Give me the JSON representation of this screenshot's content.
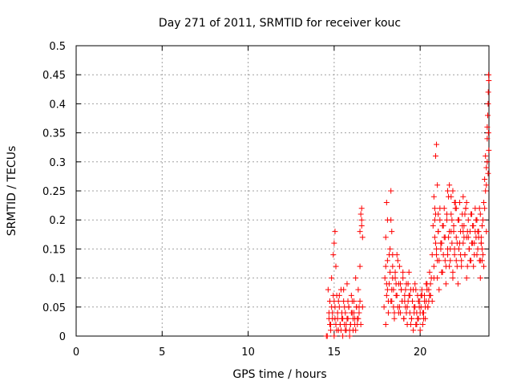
{
  "chart_data": {
    "type": "scatter",
    "title": "Day 271 of 2011, SRMTID for receiver kouc",
    "xlabel": "GPS time / hours",
    "ylabel": "SRMTID / TECUs",
    "xlim": [
      0,
      24
    ],
    "ylim": [
      0,
      0.5
    ],
    "xticks": [
      0,
      5,
      10,
      15,
      20
    ],
    "xtick_labels": [
      "0",
      "5",
      "10",
      "15",
      "20"
    ],
    "yticks": [
      0,
      0.05,
      0.1,
      0.15,
      0.2,
      0.25,
      0.3,
      0.35,
      0.4,
      0.45,
      0.5
    ],
    "ytick_labels": [
      "0",
      "0.05",
      "0.1",
      "0.15",
      "0.2",
      "0.25",
      "0.3",
      "0.35",
      "0.4",
      "0.45",
      "0.5"
    ],
    "grid": true,
    "marker": "plus",
    "color": "#ff0000",
    "series": [
      {
        "x": [
          14.55,
          14.6,
          14.65,
          14.7,
          14.75,
          14.8,
          14.85,
          14.9,
          14.95,
          15.0,
          15.05,
          15.1,
          15.15,
          15.2,
          15.25,
          15.3,
          15.35,
          15.4,
          15.45,
          15.5,
          15.55,
          15.6,
          15.65,
          15.7,
          15.75,
          15.8,
          15.85,
          15.9,
          15.95,
          16.0,
          16.05,
          16.1,
          16.15,
          16.2,
          16.25,
          16.3,
          16.35,
          16.4,
          16.45,
          16.5,
          16.55,
          16.6,
          16.65,
          14.7,
          14.8,
          14.9,
          15.0,
          15.1,
          15.2,
          15.3,
          15.4,
          15.5,
          15.6,
          15.7,
          15.8,
          15.9,
          16.0,
          16.1,
          16.2,
          16.3,
          16.4,
          16.5,
          14.75,
          14.85,
          14.95,
          15.05,
          15.15,
          15.25,
          15.35,
          15.45,
          15.55,
          15.65,
          15.75,
          15.85,
          15.95,
          16.05,
          16.15,
          16.25,
          16.35,
          16.45,
          15.0,
          15.05,
          15.1,
          16.5,
          16.55,
          16.6,
          16.6,
          16.65,
          17.9,
          17.95,
          18.0,
          18.05,
          18.1,
          18.15,
          18.2,
          18.25,
          18.3,
          18.35,
          18.4,
          18.45,
          18.5,
          18.55,
          18.6,
          18.65,
          18.7,
          18.75,
          18.8,
          18.85,
          18.9,
          18.95,
          19.0,
          19.05,
          19.1,
          19.15,
          19.2,
          19.25,
          19.3,
          19.35,
          19.4,
          19.45,
          19.5,
          19.55,
          19.6,
          19.65,
          19.7,
          19.75,
          19.8,
          19.85,
          19.9,
          19.95,
          20.0,
          20.05,
          20.1,
          20.15,
          20.2,
          20.25,
          20.3,
          20.35,
          20.4,
          20.45,
          20.5,
          20.55,
          20.6,
          20.65,
          20.7,
          18.0,
          18.1,
          18.2,
          18.3,
          18.4,
          18.5,
          18.6,
          18.7,
          18.8,
          18.9,
          19.0,
          19.1,
          19.2,
          19.3,
          19.4,
          19.5,
          19.6,
          19.7,
          19.8,
          19.9,
          20.0,
          20.1,
          20.2,
          20.3,
          20.4,
          20.5,
          20.6,
          18.05,
          18.15,
          18.25,
          18.35,
          18.45,
          18.55,
          18.65,
          18.75,
          18.85,
          18.95,
          19.05,
          19.15,
          19.25,
          19.35,
          19.45,
          19.55,
          19.65,
          19.75,
          19.85,
          19.95,
          20.05,
          20.15,
          20.25,
          20.35,
          20.45,
          20.55,
          18.0,
          18.05,
          18.1,
          18.3,
          18.35,
          18.4,
          20.8,
          20.85,
          20.9,
          20.95,
          21.0,
          21.05,
          20.7,
          20.75,
          20.8,
          20.85,
          20.9,
          20.95,
          21.0,
          21.05,
          21.1,
          21.15,
          21.2,
          21.25,
          21.3,
          21.35,
          21.4,
          21.45,
          21.5,
          21.55,
          21.6,
          21.65,
          21.7,
          21.75,
          21.8,
          21.85,
          21.9,
          21.95,
          22.0,
          22.05,
          22.1,
          22.15,
          22.2,
          22.25,
          22.3,
          22.35,
          22.4,
          22.45,
          22.5,
          22.55,
          22.6,
          22.65,
          22.7,
          22.75,
          22.8,
          22.85,
          22.9,
          22.95,
          23.0,
          23.05,
          23.1,
          23.15,
          23.2,
          23.25,
          23.3,
          23.35,
          23.4,
          23.45,
          23.5,
          23.55,
          23.6,
          23.65,
          20.8,
          20.9,
          21.0,
          21.1,
          21.2,
          21.3,
          21.4,
          21.5,
          21.6,
          21.7,
          21.8,
          21.9,
          22.0,
          22.1,
          22.2,
          22.3,
          22.4,
          22.5,
          22.6,
          22.7,
          22.8,
          22.9,
          23.0,
          23.1,
          23.2,
          23.3,
          23.4,
          23.5,
          23.6,
          20.85,
          20.95,
          21.05,
          21.15,
          21.25,
          21.35,
          21.45,
          21.55,
          21.65,
          21.75,
          21.85,
          21.95,
          22.05,
          22.15,
          22.25,
          22.35,
          22.45,
          22.55,
          22.65,
          22.75,
          22.85,
          22.95,
          23.05,
          23.15,
          23.25,
          23.35,
          23.45,
          23.55,
          21.6,
          21.7,
          21.8,
          21.9,
          22.0,
          22.1,
          22.5,
          22.6,
          22.7,
          23.5,
          23.55,
          23.6,
          23.65,
          23.7,
          23.75,
          23.8,
          23.85,
          23.9,
          23.95,
          23.97,
          23.99,
          23.7,
          23.75,
          23.8,
          23.85,
          23.9,
          23.93,
          23.96,
          23.98,
          23.99,
          23.95,
          23.9,
          23.85
        ],
        "y": [
          0.0,
          0.0,
          0.08,
          0.03,
          0.06,
          0.02,
          0.1,
          0.04,
          0.14,
          0.0,
          0.05,
          0.02,
          0.07,
          0.03,
          0.01,
          0.05,
          0.02,
          0.08,
          0.03,
          0.0,
          0.06,
          0.02,
          0.04,
          0.01,
          0.09,
          0.03,
          0.05,
          0.0,
          0.02,
          0.07,
          0.04,
          0.01,
          0.06,
          0.03,
          0.1,
          0.05,
          0.02,
          0.08,
          0.04,
          0.12,
          0.02,
          0.2,
          0.05,
          0.04,
          0.01,
          0.03,
          0.06,
          0.02,
          0.04,
          0.07,
          0.01,
          0.03,
          0.05,
          0.02,
          0.06,
          0.01,
          0.04,
          0.03,
          0.02,
          0.05,
          0.03,
          0.06,
          0.02,
          0.05,
          0.07,
          0.03,
          0.01,
          0.06,
          0.02,
          0.04,
          0.08,
          0.01,
          0.03,
          0.05,
          0.02,
          0.06,
          0.04,
          0.01,
          0.03,
          0.05,
          0.16,
          0.18,
          0.12,
          0.18,
          0.21,
          0.22,
          0.19,
          0.17,
          0.05,
          0.1,
          0.02,
          0.07,
          0.13,
          0.04,
          0.09,
          0.15,
          0.2,
          0.06,
          0.12,
          0.08,
          0.03,
          0.11,
          0.07,
          0.14,
          0.05,
          0.09,
          0.12,
          0.04,
          0.08,
          0.06,
          0.1,
          0.03,
          0.07,
          0.05,
          0.09,
          0.02,
          0.06,
          0.11,
          0.04,
          0.08,
          0.03,
          0.06,
          0.01,
          0.05,
          0.09,
          0.02,
          0.04,
          0.07,
          0.03,
          0.06,
          0.01,
          0.05,
          0.08,
          0.02,
          0.04,
          0.07,
          0.03,
          0.06,
          0.09,
          0.05,
          0.08,
          0.11,
          0.07,
          0.1,
          0.06,
          0.12,
          0.08,
          0.14,
          0.06,
          0.1,
          0.04,
          0.09,
          0.13,
          0.05,
          0.08,
          0.11,
          0.06,
          0.04,
          0.09,
          0.07,
          0.03,
          0.08,
          0.05,
          0.02,
          0.06,
          0.04,
          0.07,
          0.03,
          0.05,
          0.08,
          0.06,
          0.09,
          0.09,
          0.06,
          0.11,
          0.08,
          0.05,
          0.1,
          0.07,
          0.04,
          0.09,
          0.06,
          0.03,
          0.08,
          0.05,
          0.07,
          0.02,
          0.06,
          0.04,
          0.08,
          0.03,
          0.05,
          0.07,
          0.04,
          0.06,
          0.09,
          0.05,
          0.07,
          0.17,
          0.23,
          0.2,
          0.25,
          0.18,
          0.14,
          0.24,
          0.22,
          0.31,
          0.33,
          0.26,
          0.21,
          0.14,
          0.19,
          0.12,
          0.17,
          0.21,
          0.15,
          0.1,
          0.18,
          0.13,
          0.2,
          0.16,
          0.11,
          0.19,
          0.14,
          0.22,
          0.17,
          0.12,
          0.2,
          0.15,
          0.24,
          0.18,
          0.13,
          0.21,
          0.16,
          0.11,
          0.19,
          0.14,
          0.22,
          0.17,
          0.12,
          0.2,
          0.15,
          0.23,
          0.18,
          0.13,
          0.21,
          0.16,
          0.19,
          0.14,
          0.22,
          0.17,
          0.12,
          0.2,
          0.15,
          0.18,
          0.13,
          0.21,
          0.16,
          0.19,
          0.14,
          0.22,
          0.17,
          0.2,
          0.15,
          0.18,
          0.13,
          0.21,
          0.16,
          0.19,
          0.14,
          0.1,
          0.16,
          0.13,
          0.08,
          0.15,
          0.11,
          0.17,
          0.09,
          0.14,
          0.12,
          0.18,
          0.1,
          0.15,
          0.13,
          0.09,
          0.16,
          0.12,
          0.18,
          0.14,
          0.1,
          0.17,
          0.13,
          0.16,
          0.12,
          0.18,
          0.14,
          0.17,
          0.13,
          0.15,
          0.2,
          0.14,
          0.18,
          0.22,
          0.16,
          0.19,
          0.13,
          0.21,
          0.17,
          0.15,
          0.2,
          0.18,
          0.23,
          0.16,
          0.2,
          0.14,
          0.19,
          0.17,
          0.22,
          0.18,
          0.15,
          0.21,
          0.19,
          0.16,
          0.2,
          0.18,
          0.22,
          0.17,
          0.25,
          0.26,
          0.24,
          0.25,
          0.23,
          0.22,
          0.24,
          0.21,
          0.23,
          0.1,
          0.16,
          0.13,
          0.2,
          0.12,
          0.22,
          0.25,
          0.18,
          0.3,
          0.28,
          0.35,
          0.32,
          0.23,
          0.27,
          0.31,
          0.29,
          0.34,
          0.38,
          0.42,
          0.45,
          0.44,
          0.4,
          0.36,
          0.26
        ]
      }
    ]
  }
}
